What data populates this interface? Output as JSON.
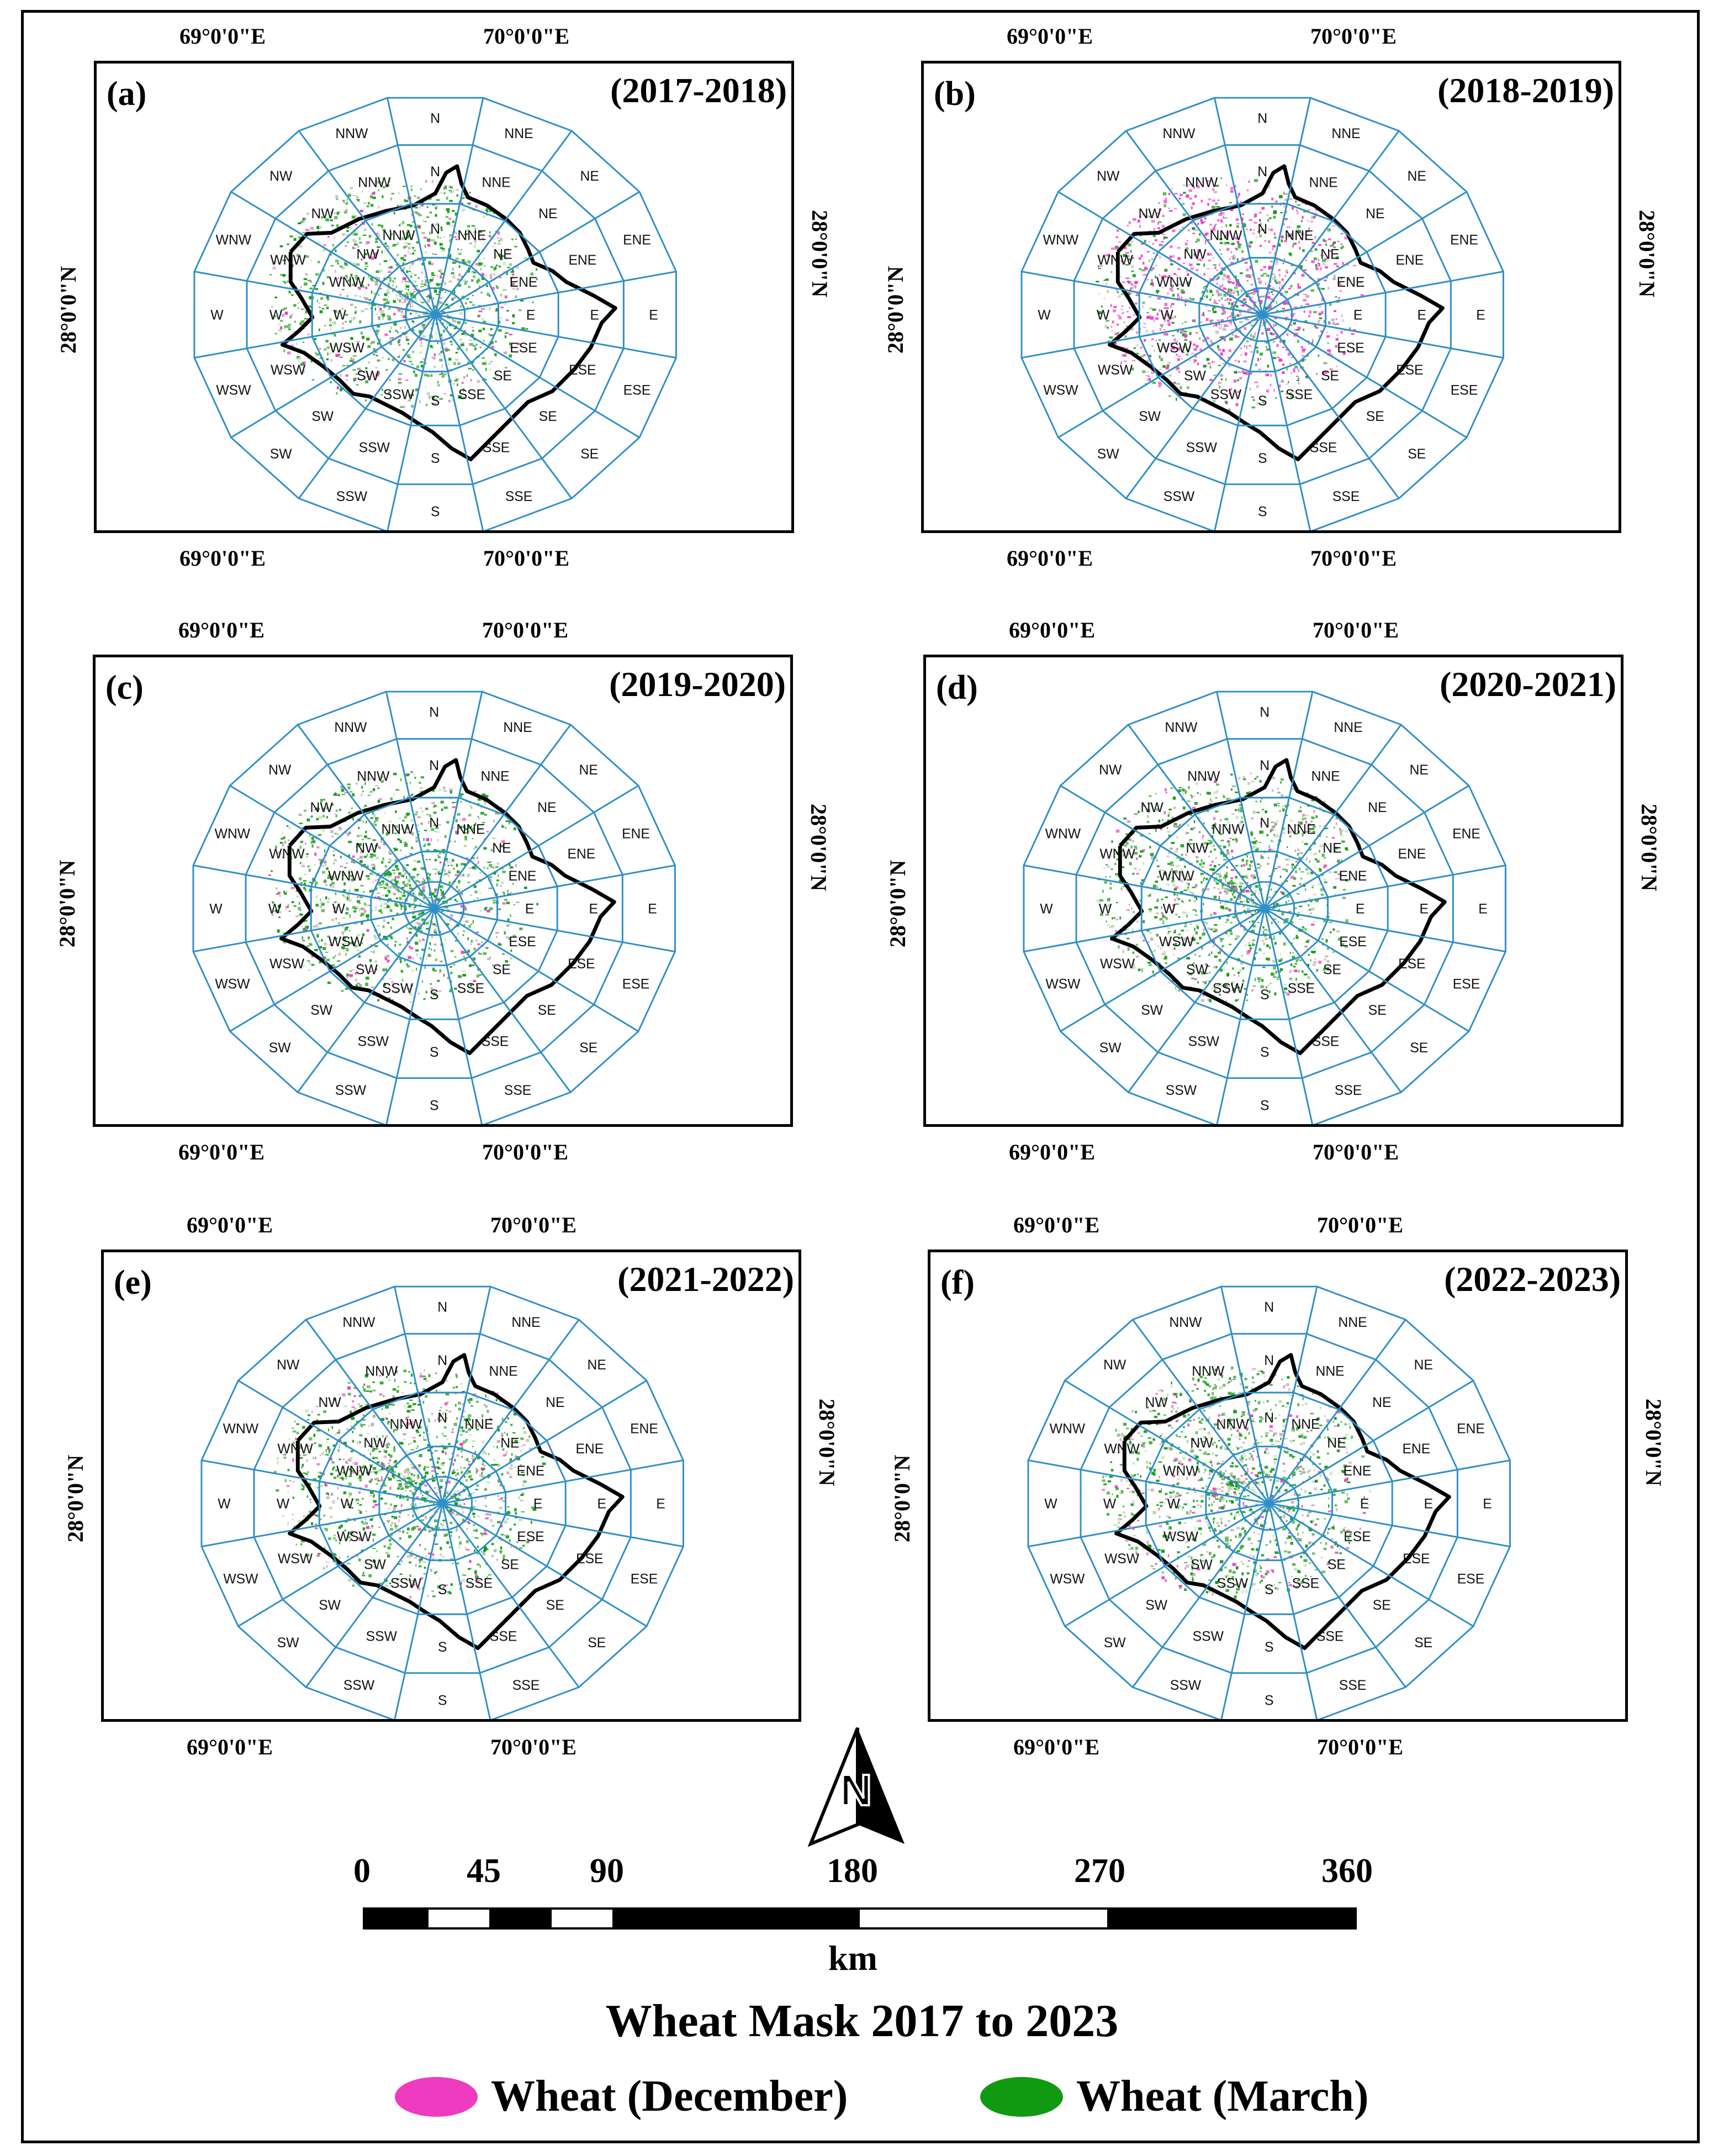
{
  "figure": {
    "title": "Wheat Mask 2017 to 2023",
    "lon_labels": [
      "69°0'0\"E",
      "70°0'0\"E"
    ],
    "lat_label": "28°0'0\"N",
    "directions": [
      "N",
      "NNE",
      "NE",
      "ENE",
      "E",
      "ESE",
      "SE",
      "SSE",
      "S",
      "SSW",
      "SW",
      "WSW",
      "W",
      "WNW",
      "NW",
      "NNW"
    ],
    "panels": [
      {
        "letter": "(a)",
        "years": "(2017-2018)",
        "dominant": "Wheat (March)"
      },
      {
        "letter": "(b)",
        "years": "(2018-2019)",
        "dominant": "Wheat (December)"
      },
      {
        "letter": "(c)",
        "years": "(2019-2020)",
        "dominant": "Wheat (March)"
      },
      {
        "letter": "(d)",
        "years": "(2020-2021)",
        "dominant": "Wheat (March)"
      },
      {
        "letter": "(e)",
        "years": "(2021-2022)",
        "dominant": "Wheat (March)"
      },
      {
        "letter": "(f)",
        "years": "(2022-2023)",
        "dominant": "Wheat (March)"
      }
    ],
    "north_arrow": "N",
    "scale": {
      "ticks": [
        "0",
        "45",
        "90",
        "180",
        "270",
        "360"
      ],
      "unit": "km"
    },
    "legend": [
      {
        "label": "Wheat (December)",
        "color": "#ee3bc0"
      },
      {
        "label": "Wheat (March)",
        "color": "#119a11"
      }
    ],
    "colors": {
      "grid": "#2f8fc8",
      "boundary": "#000000",
      "wheat_december": "#ee3bc0",
      "wheat_march": "#119a11"
    }
  }
}
